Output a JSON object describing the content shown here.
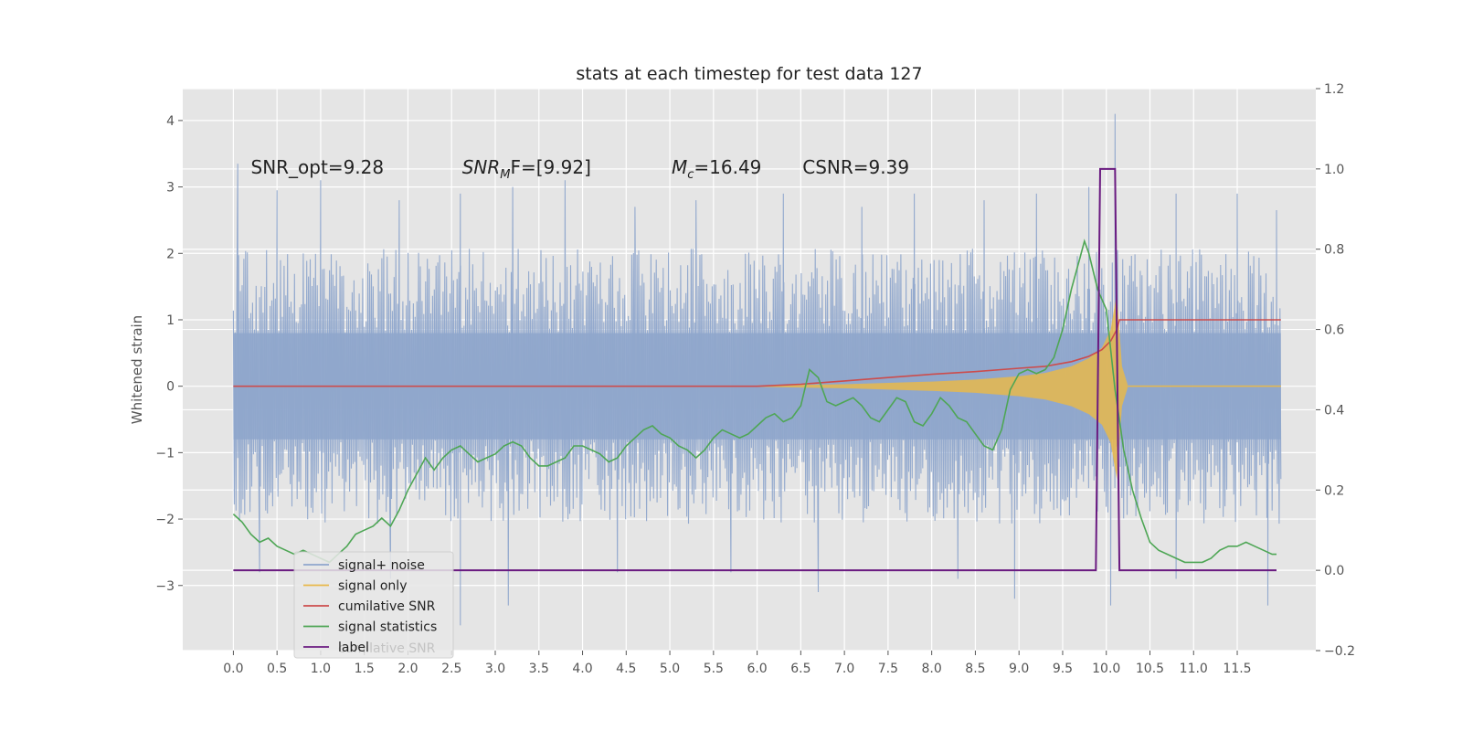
{
  "chart_data": {
    "type": "line",
    "title": "stats at each timestep for test data 127",
    "ylabel": "Whitened strain",
    "xlabel": "",
    "xlim": [
      -0.58,
      12.4
    ],
    "ylim": [
      -3.98,
      4.48
    ],
    "y2lim": [
      -0.2,
      1.2
    ],
    "x_ticks": [
      "0.0",
      "0.5",
      "1.0",
      "1.5",
      "2.0",
      "2.5",
      "3.0",
      "3.5",
      "4.0",
      "4.5",
      "5.0",
      "5.5",
      "6.0",
      "6.5",
      "7.0",
      "7.5",
      "8.0",
      "8.5",
      "9.0",
      "9.5",
      "10.0",
      "10.5",
      "11.0",
      "11.5"
    ],
    "y_ticks": [
      "−3",
      "−2",
      "−1",
      "0",
      "1",
      "2",
      "3",
      "4"
    ],
    "y2_ticks": [
      "−0.2",
      "0.0",
      "0.2",
      "0.4",
      "0.6",
      "0.8",
      "1.0",
      "1.2"
    ],
    "grid": true,
    "legend_position": "lower-left",
    "annotations": [
      {
        "text": "SNR_opt=9.28",
        "x": 0.2,
        "y": 3.3
      },
      {
        "text_main": "SNR",
        "text_sub": "M",
        "text_rest": "F=[9.92]",
        "x": 2.62,
        "y": 3.3
      },
      {
        "text_main": "M",
        "text_sub": "c",
        "text_rest": "=16.49",
        "x": 5.02,
        "y": 3.3
      },
      {
        "text": "CSNR=9.39",
        "x": 6.52,
        "y": 3.3
      }
    ],
    "legend_ghost_text": "cumilative SNR",
    "series": [
      {
        "name": "signal+ noise",
        "color": "#8fa6cc",
        "axis": "left",
        "kind": "noise-band",
        "x_range": [
          0.0,
          12.0
        ],
        "typical_low": -1.8,
        "typical_high": 1.8,
        "peaks_high": [
          [
            0.05,
            3.35
          ],
          [
            0.5,
            2.95
          ],
          [
            1.0,
            3.1
          ],
          [
            1.9,
            2.8
          ],
          [
            2.6,
            2.9
          ],
          [
            3.2,
            3.0
          ],
          [
            3.8,
            3.1
          ],
          [
            4.6,
            2.7
          ],
          [
            5.3,
            2.8
          ],
          [
            6.3,
            2.9
          ],
          [
            7.2,
            2.7
          ],
          [
            7.8,
            2.9
          ],
          [
            8.6,
            2.8
          ],
          [
            9.2,
            2.9
          ],
          [
            9.8,
            3.0
          ],
          [
            10.1,
            4.1
          ],
          [
            10.8,
            2.9
          ],
          [
            11.5,
            2.9
          ],
          [
            11.95,
            2.65
          ]
        ],
        "peaks_low": [
          [
            0.3,
            -2.8
          ],
          [
            1.8,
            -2.9
          ],
          [
            2.6,
            -3.6
          ],
          [
            3.15,
            -3.3
          ],
          [
            4.4,
            -2.8
          ],
          [
            5.7,
            -2.8
          ],
          [
            6.7,
            -3.1
          ],
          [
            8.3,
            -2.9
          ],
          [
            8.95,
            -3.2
          ],
          [
            10.05,
            -3.3
          ],
          [
            10.8,
            -2.9
          ],
          [
            11.85,
            -3.3
          ]
        ]
      },
      {
        "name": "signal only",
        "color": "#e8b84b",
        "axis": "left",
        "kind": "chirp-envelope",
        "x": [
          6.0,
          7.0,
          8.0,
          8.5,
          9.0,
          9.3,
          9.6,
          9.8,
          9.95,
          10.05,
          10.12,
          10.18,
          10.25,
          12.0
        ],
        "amplitude": [
          0.01,
          0.03,
          0.07,
          0.1,
          0.15,
          0.2,
          0.3,
          0.42,
          0.58,
          0.85,
          1.4,
          0.3,
          0.0,
          0.0
        ]
      },
      {
        "name": "cumilative SNR",
        "color": "#cc4c4c",
        "axis": "left",
        "kind": "line",
        "x": [
          0.0,
          6.0,
          6.5,
          7.0,
          7.5,
          8.0,
          8.5,
          9.0,
          9.3,
          9.6,
          9.8,
          9.95,
          10.05,
          10.12,
          10.15,
          12.0
        ],
        "y": [
          0.0,
          0.0,
          0.03,
          0.08,
          0.13,
          0.18,
          0.22,
          0.27,
          0.3,
          0.37,
          0.45,
          0.55,
          0.68,
          0.85,
          1.0,
          1.0
        ]
      },
      {
        "name": "signal statistics",
        "color": "#4ea655",
        "axis": "right",
        "kind": "line",
        "x": [
          0.0,
          0.1,
          0.2,
          0.3,
          0.4,
          0.5,
          0.6,
          0.7,
          0.8,
          0.9,
          1.0,
          1.1,
          1.2,
          1.3,
          1.4,
          1.5,
          1.6,
          1.7,
          1.8,
          1.9,
          2.0,
          2.1,
          2.2,
          2.3,
          2.4,
          2.5,
          2.6,
          2.7,
          2.8,
          2.9,
          3.0,
          3.1,
          3.2,
          3.3,
          3.4,
          3.5,
          3.6,
          3.7,
          3.8,
          3.9,
          4.0,
          4.1,
          4.2,
          4.3,
          4.4,
          4.5,
          4.6,
          4.7,
          4.8,
          4.9,
          5.0,
          5.1,
          5.2,
          5.3,
          5.4,
          5.5,
          5.6,
          5.7,
          5.8,
          5.9,
          6.0,
          6.1,
          6.2,
          6.3,
          6.4,
          6.5,
          6.6,
          6.7,
          6.8,
          6.9,
          7.0,
          7.1,
          7.2,
          7.3,
          7.4,
          7.5,
          7.6,
          7.7,
          7.8,
          7.9,
          8.0,
          8.1,
          8.2,
          8.3,
          8.4,
          8.5,
          8.6,
          8.7,
          8.8,
          8.9,
          9.0,
          9.1,
          9.2,
          9.3,
          9.4,
          9.5,
          9.6,
          9.7,
          9.75,
          9.8,
          9.9,
          10.0,
          10.1,
          10.2,
          10.3,
          10.4,
          10.5,
          10.6,
          10.7,
          10.8,
          10.9,
          11.0,
          11.1,
          11.2,
          11.3,
          11.4,
          11.5,
          11.6,
          11.7,
          11.8,
          11.9,
          11.95
        ],
        "y": [
          0.14,
          0.12,
          0.09,
          0.07,
          0.08,
          0.06,
          0.05,
          0.04,
          0.05,
          0.04,
          0.03,
          0.02,
          0.04,
          0.06,
          0.09,
          0.1,
          0.11,
          0.13,
          0.11,
          0.15,
          0.2,
          0.24,
          0.28,
          0.25,
          0.28,
          0.3,
          0.31,
          0.29,
          0.27,
          0.28,
          0.29,
          0.31,
          0.32,
          0.31,
          0.28,
          0.26,
          0.26,
          0.27,
          0.28,
          0.31,
          0.31,
          0.3,
          0.29,
          0.27,
          0.28,
          0.31,
          0.33,
          0.35,
          0.36,
          0.34,
          0.33,
          0.31,
          0.3,
          0.28,
          0.3,
          0.33,
          0.35,
          0.34,
          0.33,
          0.34,
          0.36,
          0.38,
          0.39,
          0.37,
          0.38,
          0.41,
          0.5,
          0.48,
          0.42,
          0.41,
          0.42,
          0.43,
          0.41,
          0.38,
          0.37,
          0.4,
          0.43,
          0.42,
          0.37,
          0.36,
          0.39,
          0.43,
          0.41,
          0.38,
          0.37,
          0.34,
          0.31,
          0.3,
          0.35,
          0.45,
          0.49,
          0.5,
          0.49,
          0.5,
          0.53,
          0.6,
          0.7,
          0.78,
          0.82,
          0.79,
          0.7,
          0.65,
          0.45,
          0.3,
          0.2,
          0.13,
          0.07,
          0.05,
          0.04,
          0.03,
          0.02,
          0.02,
          0.02,
          0.03,
          0.05,
          0.06,
          0.06,
          0.07,
          0.06,
          0.05,
          0.04,
          0.04
        ]
      },
      {
        "name": "label",
        "color": "#6a1a80",
        "axis": "right",
        "kind": "line",
        "x": [
          0.0,
          9.88,
          9.93,
          10.1,
          10.15,
          11.95
        ],
        "y": [
          0.0,
          0.0,
          1.0,
          1.0,
          0.0,
          0.0
        ]
      }
    ]
  }
}
